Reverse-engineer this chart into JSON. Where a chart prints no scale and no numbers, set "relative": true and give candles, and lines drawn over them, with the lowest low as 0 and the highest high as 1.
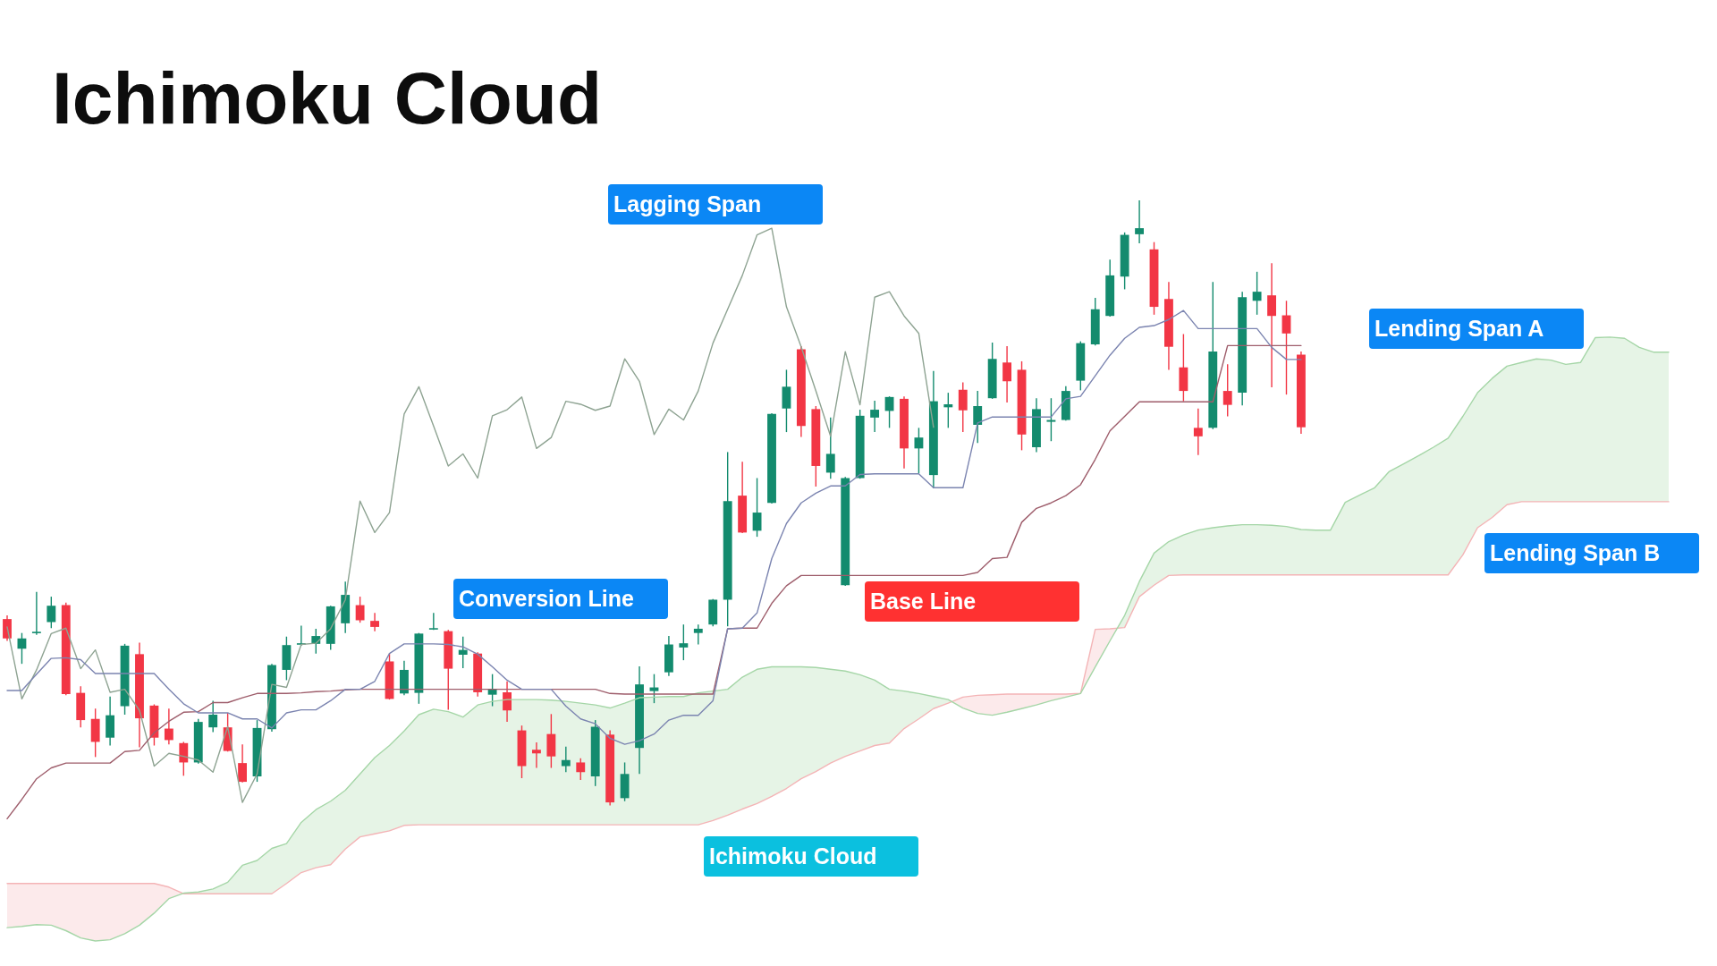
{
  "chart_data": {
    "type": "candlestick",
    "title": "Ichimoku Cloud",
    "relative": true,
    "categories": [
      null,
      null,
      null,
      null,
      null,
      null,
      null,
      null,
      null,
      null,
      null,
      null,
      null,
      null,
      null,
      null,
      null,
      null,
      null,
      null,
      null,
      null,
      null,
      null,
      null,
      null,
      null,
      null,
      null,
      null,
      null,
      null,
      null,
      null,
      null,
      null,
      null,
      null,
      null,
      null,
      null,
      null,
      null,
      null,
      null,
      null,
      null,
      null,
      null,
      null,
      null,
      null,
      null,
      null,
      null,
      null,
      null,
      null,
      null,
      null,
      null,
      null,
      null,
      null,
      null,
      null,
      null,
      null,
      null,
      null,
      null,
      null,
      null,
      null,
      null,
      null,
      null,
      null,
      null,
      null,
      null,
      null,
      null,
      null,
      null,
      null,
      null,
      null,
      null,
      null,
      null,
      null,
      null,
      null,
      null,
      null,
      null,
      null,
      null,
      null,
      null,
      null,
      null,
      null,
      null,
      null,
      null,
      null,
      null,
      null,
      null,
      null,
      null,
      null
    ],
    "ohlc": [
      [
        0.308,
        0.314,
        0.272,
        0.276
      ],
      [
        0.259,
        0.285,
        0.234,
        0.276
      ],
      [
        0.285,
        0.353,
        0.282,
        0.287
      ],
      [
        0.303,
        0.345,
        0.293,
        0.33
      ],
      [
        0.331,
        0.335,
        0.182,
        0.184
      ],
      [
        0.186,
        0.197,
        0.129,
        0.141
      ],
      [
        0.143,
        0.16,
        0.08,
        0.105
      ],
      [
        0.112,
        0.18,
        0.099,
        0.149
      ],
      [
        0.164,
        0.267,
        0.15,
        0.264
      ],
      [
        0.25,
        0.269,
        0.096,
        0.144
      ],
      [
        0.165,
        0.167,
        0.099,
        0.112
      ],
      [
        0.127,
        0.16,
        0.101,
        0.108
      ],
      [
        0.103,
        0.105,
        0.049,
        0.071
      ],
      [
        0.071,
        0.143,
        0.069,
        0.138
      ],
      [
        0.129,
        0.173,
        0.121,
        0.15
      ],
      [
        0.129,
        0.153,
        0.089,
        0.09
      ],
      [
        0.07,
        0.101,
        0.038,
        0.039
      ],
      [
        0.048,
        0.141,
        0.039,
        0.128
      ],
      [
        0.126,
        0.234,
        0.122,
        0.232
      ],
      [
        0.224,
        0.279,
        0.207,
        0.265
      ],
      [
        0.266,
        0.297,
        0.264,
        0.268
      ],
      [
        0.267,
        0.292,
        0.251,
        0.28
      ],
      [
        0.267,
        0.33,
        0.257,
        0.329
      ],
      [
        0.301,
        0.37,
        0.285,
        0.348
      ],
      [
        0.331,
        0.345,
        0.302,
        0.306
      ],
      [
        0.305,
        0.318,
        0.288,
        0.295
      ],
      [
        0.238,
        0.251,
        0.175,
        0.176
      ],
      [
        0.185,
        0.239,
        0.182,
        0.224
      ],
      [
        0.186,
        0.285,
        0.168,
        0.284
      ],
      [
        0.292,
        0.318,
        0.29,
        0.293
      ],
      [
        0.288,
        0.29,
        0.158,
        0.226
      ],
      [
        0.249,
        0.279,
        0.227,
        0.257
      ],
      [
        0.251,
        0.253,
        0.18,
        0.187
      ],
      [
        0.183,
        0.217,
        0.164,
        0.192
      ],
      [
        0.187,
        0.205,
        0.138,
        0.157
      ],
      [
        0.124,
        0.132,
        0.045,
        0.065
      ],
      [
        0.092,
        0.104,
        0.062,
        0.086
      ],
      [
        0.118,
        0.151,
        0.062,
        0.081
      ],
      [
        0.065,
        0.097,
        0.055,
        0.075
      ],
      [
        0.071,
        0.078,
        0.042,
        0.055
      ],
      [
        0.048,
        0.141,
        0.032,
        0.13
      ],
      [
        0.117,
        0.124,
        0,
        0.005
      ],
      [
        0.012,
        0.071,
        0.007,
        0.052
      ],
      [
        0.095,
        0.23,
        0.052,
        0.2
      ],
      [
        0.189,
        0.217,
        0.169,
        0.195
      ],
      [
        0.22,
        0.28,
        0.214,
        0.266
      ],
      [
        0.261,
        0.299,
        0.24,
        0.268
      ],
      [
        0.285,
        0.299,
        0.266,
        0.292
      ],
      [
        0.299,
        0.341,
        0.296,
        0.34
      ],
      [
        0.34,
        0.584,
        0.296,
        0.503
      ],
      [
        0.512,
        0.568,
        0.45,
        0.451
      ],
      [
        0.454,
        0.541,
        0.444,
        0.484
      ],
      [
        0.5,
        0.648,
        0.499,
        0.647
      ],
      [
        0.656,
        0.72,
        0.617,
        0.692
      ],
      [
        0.754,
        0.759,
        0.609,
        0.627
      ],
      [
        0.655,
        0.66,
        0.527,
        0.561
      ],
      [
        0.55,
        0.641,
        0.54,
        0.581
      ],
      [
        0.364,
        0.543,
        0.363,
        0.541
      ],
      [
        0.541,
        0.654,
        0.54,
        0.644
      ],
      [
        0.641,
        0.669,
        0.617,
        0.654
      ],
      [
        0.652,
        0.676,
        0.624,
        0.675
      ],
      [
        0.672,
        0.676,
        0.557,
        0.59
      ],
      [
        0.59,
        0.624,
        0.549,
        0.608
      ],
      [
        0.546,
        0.718,
        0.524,
        0.668
      ],
      [
        0.658,
        0.682,
        0.624,
        0.663
      ],
      [
        0.687,
        0.699,
        0.617,
        0.653
      ],
      [
        0.629,
        0.685,
        0.599,
        0.66
      ],
      [
        0.673,
        0.765,
        0.672,
        0.738
      ],
      [
        0.732,
        0.759,
        0.666,
        0.701
      ],
      [
        0.72,
        0.734,
        0.587,
        0.613
      ],
      [
        0.592,
        0.673,
        0.584,
        0.655
      ],
      [
        0.634,
        0.673,
        0.602,
        0.637
      ],
      [
        0.637,
        0.693,
        0.636,
        0.685
      ],
      [
        0.702,
        0.767,
        0.686,
        0.764
      ],
      [
        0.762,
        0.839,
        0.76,
        0.82
      ],
      [
        0.809,
        0.902,
        0.808,
        0.876
      ],
      [
        0.874,
        0.947,
        0.853,
        0.943
      ],
      [
        0.944,
        1,
        0.929,
        0.954
      ],
      [
        0.919,
        0.931,
        0.811,
        0.824
      ],
      [
        0.837,
        0.865,
        0.72,
        0.758
      ],
      [
        0.724,
        0.779,
        0.668,
        0.685
      ],
      [
        0.624,
        0.656,
        0.579,
        0.61
      ],
      [
        0.624,
        0.865,
        0.622,
        0.75
      ],
      [
        0.685,
        0.729,
        0.643,
        0.662
      ],
      [
        0.682,
        0.849,
        0.661,
        0.84
      ],
      [
        0.834,
        0.882,
        0.811,
        0.849
      ],
      [
        0.843,
        0.896,
        0.691,
        0.809
      ],
      [
        0.81,
        0.834,
        0.679,
        0.78
      ],
      [
        0.745,
        0.75,
        0.614,
        0.625
      ],
      null,
      null,
      null,
      null,
      null,
      null,
      null,
      null,
      null,
      null,
      null,
      null,
      null,
      null,
      null,
      null,
      null,
      null,
      null,
      null,
      null,
      null,
      null,
      null,
      null
    ],
    "colors": [
      "#f23645",
      "#138b6e",
      "#138b6e",
      "#138b6e",
      "#f23645",
      "#f23645",
      "#f23645",
      "#138b6e",
      "#138b6e",
      "#f23645",
      "#f23645",
      "#f23645",
      "#f23645",
      "#138b6e",
      "#138b6e",
      "#f23645",
      "#f23645",
      "#138b6e",
      "#138b6e",
      "#138b6e",
      "#138b6e",
      "#138b6e",
      "#138b6e",
      "#138b6e",
      "#f23645",
      "#f23645",
      "#f23645",
      "#138b6e",
      "#138b6e",
      "#138b6e",
      "#f23645",
      "#138b6e",
      "#f23645",
      "#138b6e",
      "#f23645",
      "#f23645",
      "#f23645",
      "#f23645",
      "#138b6e",
      "#f23645",
      "#138b6e",
      "#f23645",
      "#138b6e",
      "#138b6e",
      "#138b6e",
      "#138b6e",
      "#138b6e",
      "#138b6e",
      "#138b6e",
      "#138b6e",
      "#f23645",
      "#138b6e",
      "#138b6e",
      "#138b6e",
      "#f23645",
      "#f23645",
      "#138b6e",
      "#138b6e",
      "#138b6e",
      "#138b6e",
      "#138b6e",
      "#f23645",
      "#138b6e",
      "#138b6e",
      "#138b6e",
      "#f23645",
      "#138b6e",
      "#138b6e",
      "#f23645",
      "#f23645",
      "#138b6e",
      "#138b6e",
      "#138b6e",
      "#138b6e",
      "#138b6e",
      "#138b6e",
      "#138b6e",
      "#138b6e",
      "#f23645",
      "#f23645",
      "#f23645",
      "#f23645",
      "#138b6e",
      "#f23645",
      "#138b6e",
      "#138b6e",
      "#f23645",
      "#f23645",
      "#f23645",
      null,
      null,
      null,
      null,
      null,
      null,
      null,
      null,
      null,
      null,
      null,
      null,
      null,
      null,
      null,
      null,
      null,
      null,
      null,
      null,
      null,
      null,
      null,
      null,
      null
    ],
    "series": [
      {
        "type": "line",
        "name": "Conversion Line",
        "color": "#7b84b0",
        "values": [
          0.19,
          0.19,
          0.217,
          0.243,
          0.244,
          0.241,
          0.218,
          0.218,
          0.218,
          0.218,
          0.218,
          0.192,
          0.168,
          0.153,
          0.153,
          0.153,
          0.143,
          0.143,
          0.128,
          0.153,
          0.158,
          0.158,
          0.173,
          0.192,
          0.192,
          0.205,
          0.251,
          0.267,
          0.267,
          0.267,
          0.266,
          0.262,
          0.25,
          0.229,
          0.207,
          0.192,
          0.192,
          0.192,
          0.164,
          0.143,
          0.135,
          0.111,
          0.101,
          0.107,
          0.118,
          0.141,
          0.149,
          0.149,
          0.173,
          0.292,
          0.293,
          0.318,
          0.408,
          0.466,
          0.5,
          0.516,
          0.528,
          0.528,
          0.547,
          0.548,
          0.548,
          0.548,
          0.548,
          0.525,
          0.525,
          0.525,
          0.632,
          0.642,
          0.642,
          0.642,
          0.642,
          0.642,
          0.672,
          0.676,
          0.71,
          0.744,
          0.772,
          0.79,
          0.793,
          0.803,
          0.818,
          0.788,
          0.788,
          0.788,
          0.788,
          0.788,
          0.757,
          0.737,
          0.737,
          null,
          null,
          null,
          null,
          null,
          null,
          null,
          null,
          null,
          null,
          null,
          null,
          null,
          null,
          null,
          null,
          null,
          null,
          null,
          null,
          null,
          null,
          null,
          null,
          null
        ]
      },
      {
        "type": "line",
        "name": "Base Line",
        "color": "#9e5d6b",
        "values": [
          -0.022,
          0.01,
          0.044,
          0.062,
          0.07,
          0.07,
          0.07,
          0.07,
          0.089,
          0.091,
          0.12,
          0.139,
          0.154,
          0.155,
          0.17,
          0.17,
          0.178,
          0.185,
          0.185,
          0.185,
          0.186,
          0.188,
          0.189,
          0.191,
          0.192,
          0.192,
          0.192,
          0.192,
          0.192,
          0.192,
          0.192,
          0.192,
          0.192,
          0.192,
          0.192,
          0.192,
          0.192,
          0.192,
          0.192,
          0.192,
          0.192,
          0.185,
          0.184,
          0.184,
          0.184,
          0.184,
          0.184,
          0.184,
          0.184,
          0.292,
          0.293,
          0.293,
          0.334,
          0.363,
          0.38,
          0.38,
          0.38,
          0.38,
          0.38,
          0.38,
          0.38,
          0.38,
          0.38,
          0.38,
          0.38,
          0.38,
          0.385,
          0.408,
          0.41,
          0.468,
          0.491,
          0.5,
          0.512,
          0.53,
          0.572,
          0.619,
          0.643,
          0.667,
          0.667,
          0.667,
          0.667,
          0.667,
          0.667,
          0.76,
          0.76,
          0.76,
          0.76,
          0.76,
          0.76,
          null,
          null,
          null,
          null,
          null,
          null,
          null,
          null,
          null,
          null,
          null,
          null,
          null,
          null,
          null,
          null,
          null,
          null,
          null,
          null,
          null,
          null,
          null,
          null,
          null
        ]
      },
      {
        "type": "line",
        "name": "Lagging Span",
        "color": "#8ea392",
        "values": [
          0.295,
          0.176,
          0.224,
          0.284,
          0.293,
          0.226,
          0.257,
          0.187,
          0.192,
          0.157,
          0.065,
          0.086,
          0.081,
          0.075,
          0.055,
          0.13,
          0.005,
          0.052,
          0.2,
          0.195,
          0.266,
          0.268,
          0.292,
          0.34,
          0.503,
          0.451,
          0.484,
          0.647,
          0.692,
          0.627,
          0.561,
          0.581,
          0.541,
          0.644,
          0.654,
          0.675,
          0.59,
          0.608,
          0.668,
          0.663,
          0.653,
          0.66,
          0.738,
          0.701,
          0.613,
          0.655,
          0.637,
          0.685,
          0.764,
          0.82,
          0.876,
          0.943,
          0.954,
          0.824,
          0.758,
          0.685,
          0.61,
          0.75,
          0.662,
          0.84,
          0.849,
          0.809,
          0.78,
          0.625,
          null,
          null,
          null,
          null,
          null,
          null,
          null,
          null,
          null,
          null,
          null,
          null,
          null,
          null,
          null,
          null,
          null,
          null,
          null,
          null,
          null,
          null,
          null,
          null,
          null,
          null,
          null,
          null,
          null,
          null,
          null,
          null,
          null,
          null,
          null,
          null,
          null,
          null,
          null,
          null,
          null,
          null,
          null,
          null,
          null,
          null,
          null,
          null,
          null,
          null
        ]
      },
      {
        "type": "line",
        "name": "Lending Span A",
        "color": "#a5d6a7",
        "values": [
          -0.202,
          -0.2,
          -0.197,
          -0.198,
          -0.207,
          -0.219,
          -0.224,
          -0.222,
          -0.212,
          -0.198,
          -0.178,
          -0.154,
          -0.145,
          -0.143,
          -0.138,
          -0.127,
          -0.099,
          -0.091,
          -0.071,
          -0.063,
          -0.028,
          -0.007,
          0.007,
          0.025,
          0.052,
          0.079,
          0.099,
          0.123,
          0.15,
          0.159,
          0.155,
          0.146,
          0.166,
          0.172,
          0.175,
          0.175,
          0.175,
          0.174,
          0.172,
          0.169,
          0.166,
          0.161,
          0.169,
          0.178,
          0.179,
          0.18,
          0.18,
          0.186,
          0.189,
          0.192,
          0.212,
          0.225,
          0.229,
          0.229,
          0.229,
          0.228,
          0.225,
          0.222,
          0.216,
          0.207,
          0.192,
          0.189,
          0.185,
          0.18,
          0.175,
          0.161,
          0.152,
          0.149,
          0.154,
          0.16,
          0.166,
          0.173,
          0.179,
          0.185,
          0.229,
          0.272,
          0.314,
          0.37,
          0.417,
          0.436,
          0.447,
          0.455,
          0.459,
          0.462,
          0.464,
          0.464,
          0.463,
          0.461,
          0.456,
          0.455,
          0.455,
          0.501,
          0.513,
          0.525,
          0.552,
          0.565,
          0.578,
          0.592,
          0.607,
          0.643,
          0.682,
          0.706,
          0.726,
          0.732,
          0.738,
          0.736,
          0.729,
          0.732,
          0.773,
          0.774,
          0.772,
          0.757,
          0.749,
          0.749
        ]
      },
      {
        "type": "line",
        "name": "Lending Span B",
        "color": "#f4b4b6",
        "values": [
          -0.129,
          -0.129,
          -0.129,
          -0.129,
          -0.129,
          -0.129,
          -0.129,
          -0.129,
          -0.129,
          -0.129,
          -0.129,
          -0.135,
          -0.146,
          -0.146,
          -0.146,
          -0.146,
          -0.146,
          -0.146,
          -0.146,
          -0.129,
          -0.111,
          -0.103,
          -0.098,
          -0.072,
          -0.052,
          -0.047,
          -0.042,
          -0.033,
          -0.032,
          -0.032,
          -0.032,
          -0.032,
          -0.032,
          -0.032,
          -0.032,
          -0.032,
          -0.032,
          -0.032,
          -0.032,
          -0.032,
          -0.032,
          -0.032,
          -0.032,
          -0.032,
          -0.032,
          -0.032,
          -0.032,
          -0.032,
          -0.025,
          -0.016,
          -0.006,
          0.003,
          0.015,
          0.028,
          0.044,
          0.056,
          0.07,
          0.081,
          0.09,
          0.099,
          0.103,
          0.127,
          0.143,
          0.16,
          0.169,
          0.179,
          0.182,
          0.183,
          0.184,
          0.184,
          0.184,
          0.184,
          0.184,
          0.185,
          0.291,
          0.292,
          0.294,
          0.345,
          0.364,
          0.38,
          0.381,
          0.381,
          0.381,
          0.381,
          0.381,
          0.381,
          0.381,
          0.381,
          0.381,
          0.381,
          0.381,
          0.381,
          0.381,
          0.381,
          0.381,
          0.381,
          0.381,
          0.381,
          0.381,
          0.414,
          0.459,
          0.476,
          0.497,
          0.502,
          0.502,
          0.502,
          0.502,
          0.502,
          0.502,
          0.502,
          0.502,
          0.502,
          0.502,
          0.502
        ]
      }
    ],
    "annotations": [
      "Ichimoku Cloud"
    ]
  }
}
